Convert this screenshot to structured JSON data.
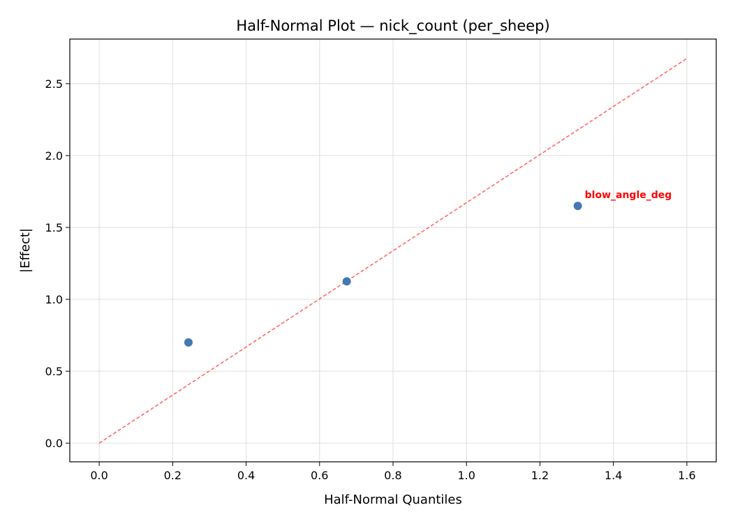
{
  "chart_data": {
    "type": "scatter",
    "title": "Half-Normal Plot — nick_count (per_sheep)",
    "xlabel": "Half-Normal Quantiles",
    "ylabel": "|Effect|",
    "xlim": [
      -0.08,
      1.68
    ],
    "ylim": [
      -0.13,
      2.81
    ],
    "xticks": [
      0.0,
      0.2,
      0.4,
      0.6,
      0.8,
      1.0,
      1.2,
      1.4,
      1.6
    ],
    "xtick_labels": [
      "0.0",
      "0.2",
      "0.4",
      "0.6",
      "0.8",
      "1.0",
      "1.2",
      "1.4",
      "1.6"
    ],
    "yticks": [
      0.0,
      0.5,
      1.0,
      1.5,
      2.0,
      2.5
    ],
    "ytick_labels": [
      "0.0",
      "0.5",
      "1.0",
      "1.5",
      "2.0",
      "2.5"
    ],
    "grid": true,
    "points": [
      {
        "x": 0.243,
        "y": 0.7
      },
      {
        "x": 0.674,
        "y": 1.125
      },
      {
        "x": 1.303,
        "y": 1.65,
        "label": "blow_angle_deg"
      }
    ],
    "reference_line": {
      "x": [
        0.0,
        1.6
      ],
      "y": [
        0.0,
        2.675
      ],
      "style": "dashed"
    },
    "colors": {
      "points": "#4479b0",
      "line": "#ff6060",
      "label": "#ff0000"
    }
  }
}
